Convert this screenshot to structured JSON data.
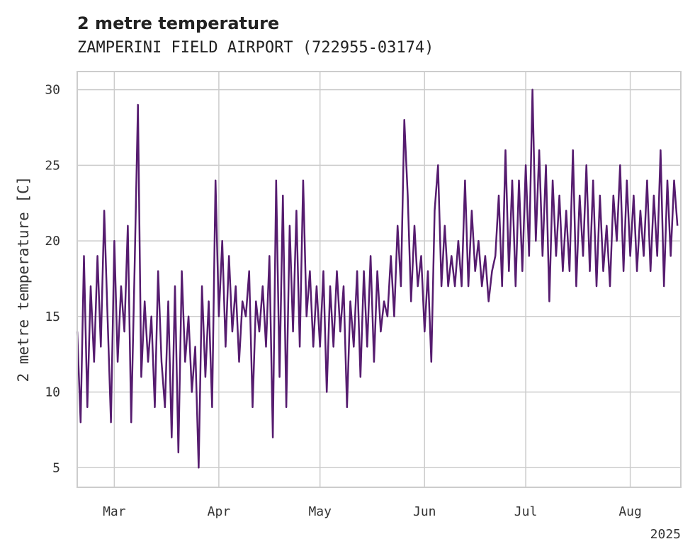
{
  "chart_data": {
    "type": "line",
    "title": "2 metre temperature",
    "subtitle": "ZAMPERINI FIELD AIRPORT (722955-03174)",
    "xlabel": "",
    "ylabel": "2 metre temperature [C]",
    "year_label": "2025",
    "line_color": "#561c6f",
    "grid": true,
    "xlim": [
      "2025-02-18",
      "2025-08-16"
    ],
    "ylim": [
      3.7,
      31.2
    ],
    "x_ticks": [
      {
        "date": "2025-03-01",
        "label": "Mar"
      },
      {
        "date": "2025-04-01",
        "label": "Apr"
      },
      {
        "date": "2025-05-01",
        "label": "May"
      },
      {
        "date": "2025-06-01",
        "label": "Jun"
      },
      {
        "date": "2025-07-01",
        "label": "Jul"
      },
      {
        "date": "2025-08-01",
        "label": "Aug"
      }
    ],
    "y_ticks": [
      {
        "value": 5,
        "label": "5"
      },
      {
        "value": 10,
        "label": "10"
      },
      {
        "value": 15,
        "label": "15"
      },
      {
        "value": 20,
        "label": "20"
      },
      {
        "value": 25,
        "label": "25"
      },
      {
        "value": 30,
        "label": "30"
      }
    ],
    "series": [
      {
        "points": [
          [
            "2025-02-18",
            14
          ],
          [
            "2025-02-19",
            8
          ],
          [
            "2025-02-20",
            19
          ],
          [
            "2025-02-21",
            9
          ],
          [
            "2025-02-22",
            17
          ],
          [
            "2025-02-23",
            12
          ],
          [
            "2025-02-24",
            19
          ],
          [
            "2025-02-25",
            13
          ],
          [
            "2025-02-26",
            22
          ],
          [
            "2025-02-27",
            15
          ],
          [
            "2025-02-28",
            8
          ],
          [
            "2025-03-01",
            20
          ],
          [
            "2025-03-02",
            12
          ],
          [
            "2025-03-03",
            17
          ],
          [
            "2025-03-04",
            14
          ],
          [
            "2025-03-05",
            21
          ],
          [
            "2025-03-06",
            8
          ],
          [
            "2025-03-07",
            18
          ],
          [
            "2025-03-08",
            29
          ],
          [
            "2025-03-09",
            11
          ],
          [
            "2025-03-10",
            16
          ],
          [
            "2025-03-11",
            12
          ],
          [
            "2025-03-12",
            15
          ],
          [
            "2025-03-13",
            9
          ],
          [
            "2025-03-14",
            18
          ],
          [
            "2025-03-15",
            12
          ],
          [
            "2025-03-16",
            9
          ],
          [
            "2025-03-17",
            16
          ],
          [
            "2025-03-18",
            7
          ],
          [
            "2025-03-19",
            17
          ],
          [
            "2025-03-20",
            6
          ],
          [
            "2025-03-21",
            18
          ],
          [
            "2025-03-22",
            12
          ],
          [
            "2025-03-23",
            15
          ],
          [
            "2025-03-24",
            10
          ],
          [
            "2025-03-25",
            13
          ],
          [
            "2025-03-26",
            5
          ],
          [
            "2025-03-27",
            17
          ],
          [
            "2025-03-28",
            11
          ],
          [
            "2025-03-29",
            16
          ],
          [
            "2025-03-30",
            9
          ],
          [
            "2025-03-31",
            24
          ],
          [
            "2025-04-01",
            15
          ],
          [
            "2025-04-02",
            20
          ],
          [
            "2025-04-03",
            13
          ],
          [
            "2025-04-04",
            19
          ],
          [
            "2025-04-05",
            14
          ],
          [
            "2025-04-06",
            17
          ],
          [
            "2025-04-07",
            12
          ],
          [
            "2025-04-08",
            16
          ],
          [
            "2025-04-09",
            15
          ],
          [
            "2025-04-10",
            18
          ],
          [
            "2025-04-11",
            9
          ],
          [
            "2025-04-12",
            16
          ],
          [
            "2025-04-13",
            14
          ],
          [
            "2025-04-14",
            17
          ],
          [
            "2025-04-15",
            13
          ],
          [
            "2025-04-16",
            19
          ],
          [
            "2025-04-17",
            7
          ],
          [
            "2025-04-18",
            24
          ],
          [
            "2025-04-19",
            11
          ],
          [
            "2025-04-20",
            23
          ],
          [
            "2025-04-21",
            9
          ],
          [
            "2025-04-22",
            21
          ],
          [
            "2025-04-23",
            14
          ],
          [
            "2025-04-24",
            22
          ],
          [
            "2025-04-25",
            13
          ],
          [
            "2025-04-26",
            24
          ],
          [
            "2025-04-27",
            15
          ],
          [
            "2025-04-28",
            18
          ],
          [
            "2025-04-29",
            13
          ],
          [
            "2025-04-30",
            17
          ],
          [
            "2025-05-01",
            13
          ],
          [
            "2025-05-02",
            18
          ],
          [
            "2025-05-03",
            10
          ],
          [
            "2025-05-04",
            17
          ],
          [
            "2025-05-05",
            13
          ],
          [
            "2025-05-06",
            18
          ],
          [
            "2025-05-07",
            14
          ],
          [
            "2025-05-08",
            17
          ],
          [
            "2025-05-09",
            9
          ],
          [
            "2025-05-10",
            16
          ],
          [
            "2025-05-11",
            13
          ],
          [
            "2025-05-12",
            18
          ],
          [
            "2025-05-13",
            11
          ],
          [
            "2025-05-14",
            18
          ],
          [
            "2025-05-15",
            13
          ],
          [
            "2025-05-16",
            19
          ],
          [
            "2025-05-17",
            12
          ],
          [
            "2025-05-18",
            18
          ],
          [
            "2025-05-19",
            14
          ],
          [
            "2025-05-20",
            16
          ],
          [
            "2025-05-21",
            15
          ],
          [
            "2025-05-22",
            19
          ],
          [
            "2025-05-23",
            15
          ],
          [
            "2025-05-24",
            21
          ],
          [
            "2025-05-25",
            17
          ],
          [
            "2025-05-26",
            28
          ],
          [
            "2025-05-27",
            23
          ],
          [
            "2025-05-28",
            16
          ],
          [
            "2025-05-29",
            21
          ],
          [
            "2025-05-30",
            17
          ],
          [
            "2025-05-31",
            19
          ],
          [
            "2025-06-01",
            14
          ],
          [
            "2025-06-02",
            18
          ],
          [
            "2025-06-03",
            12
          ],
          [
            "2025-06-04",
            22
          ],
          [
            "2025-06-05",
            25
          ],
          [
            "2025-06-06",
            17
          ],
          [
            "2025-06-07",
            21
          ],
          [
            "2025-06-08",
            17
          ],
          [
            "2025-06-09",
            19
          ],
          [
            "2025-06-10",
            17
          ],
          [
            "2025-06-11",
            20
          ],
          [
            "2025-06-12",
            17
          ],
          [
            "2025-06-13",
            24
          ],
          [
            "2025-06-14",
            17
          ],
          [
            "2025-06-15",
            22
          ],
          [
            "2025-06-16",
            18
          ],
          [
            "2025-06-17",
            20
          ],
          [
            "2025-06-18",
            17
          ],
          [
            "2025-06-19",
            19
          ],
          [
            "2025-06-20",
            16
          ],
          [
            "2025-06-21",
            18
          ],
          [
            "2025-06-22",
            19
          ],
          [
            "2025-06-23",
            23
          ],
          [
            "2025-06-24",
            17
          ],
          [
            "2025-06-25",
            26
          ],
          [
            "2025-06-26",
            18
          ],
          [
            "2025-06-27",
            24
          ],
          [
            "2025-06-28",
            17
          ],
          [
            "2025-06-29",
            24
          ],
          [
            "2025-06-30",
            18
          ],
          [
            "2025-07-01",
            25
          ],
          [
            "2025-07-02",
            19
          ],
          [
            "2025-07-03",
            30
          ],
          [
            "2025-07-04",
            20
          ],
          [
            "2025-07-05",
            26
          ],
          [
            "2025-07-06",
            19
          ],
          [
            "2025-07-07",
            25
          ],
          [
            "2025-07-08",
            16
          ],
          [
            "2025-07-09",
            24
          ],
          [
            "2025-07-10",
            19
          ],
          [
            "2025-07-11",
            23
          ],
          [
            "2025-07-12",
            18
          ],
          [
            "2025-07-13",
            22
          ],
          [
            "2025-07-14",
            18
          ],
          [
            "2025-07-15",
            26
          ],
          [
            "2025-07-16",
            17
          ],
          [
            "2025-07-17",
            23
          ],
          [
            "2025-07-18",
            19
          ],
          [
            "2025-07-19",
            25
          ],
          [
            "2025-07-20",
            18
          ],
          [
            "2025-07-21",
            24
          ],
          [
            "2025-07-22",
            17
          ],
          [
            "2025-07-23",
            23
          ],
          [
            "2025-07-24",
            18
          ],
          [
            "2025-07-25",
            21
          ],
          [
            "2025-07-26",
            17
          ],
          [
            "2025-07-27",
            23
          ],
          [
            "2025-07-28",
            20
          ],
          [
            "2025-07-29",
            25
          ],
          [
            "2025-07-30",
            18
          ],
          [
            "2025-07-31",
            24
          ],
          [
            "2025-08-01",
            19
          ],
          [
            "2025-08-02",
            23
          ],
          [
            "2025-08-03",
            18
          ],
          [
            "2025-08-04",
            22
          ],
          [
            "2025-08-05",
            19
          ],
          [
            "2025-08-06",
            24
          ],
          [
            "2025-08-07",
            18
          ],
          [
            "2025-08-08",
            23
          ],
          [
            "2025-08-09",
            19
          ],
          [
            "2025-08-10",
            26
          ],
          [
            "2025-08-11",
            17
          ],
          [
            "2025-08-12",
            24
          ],
          [
            "2025-08-13",
            19
          ],
          [
            "2025-08-14",
            24
          ],
          [
            "2025-08-15",
            21
          ]
        ]
      }
    ]
  }
}
